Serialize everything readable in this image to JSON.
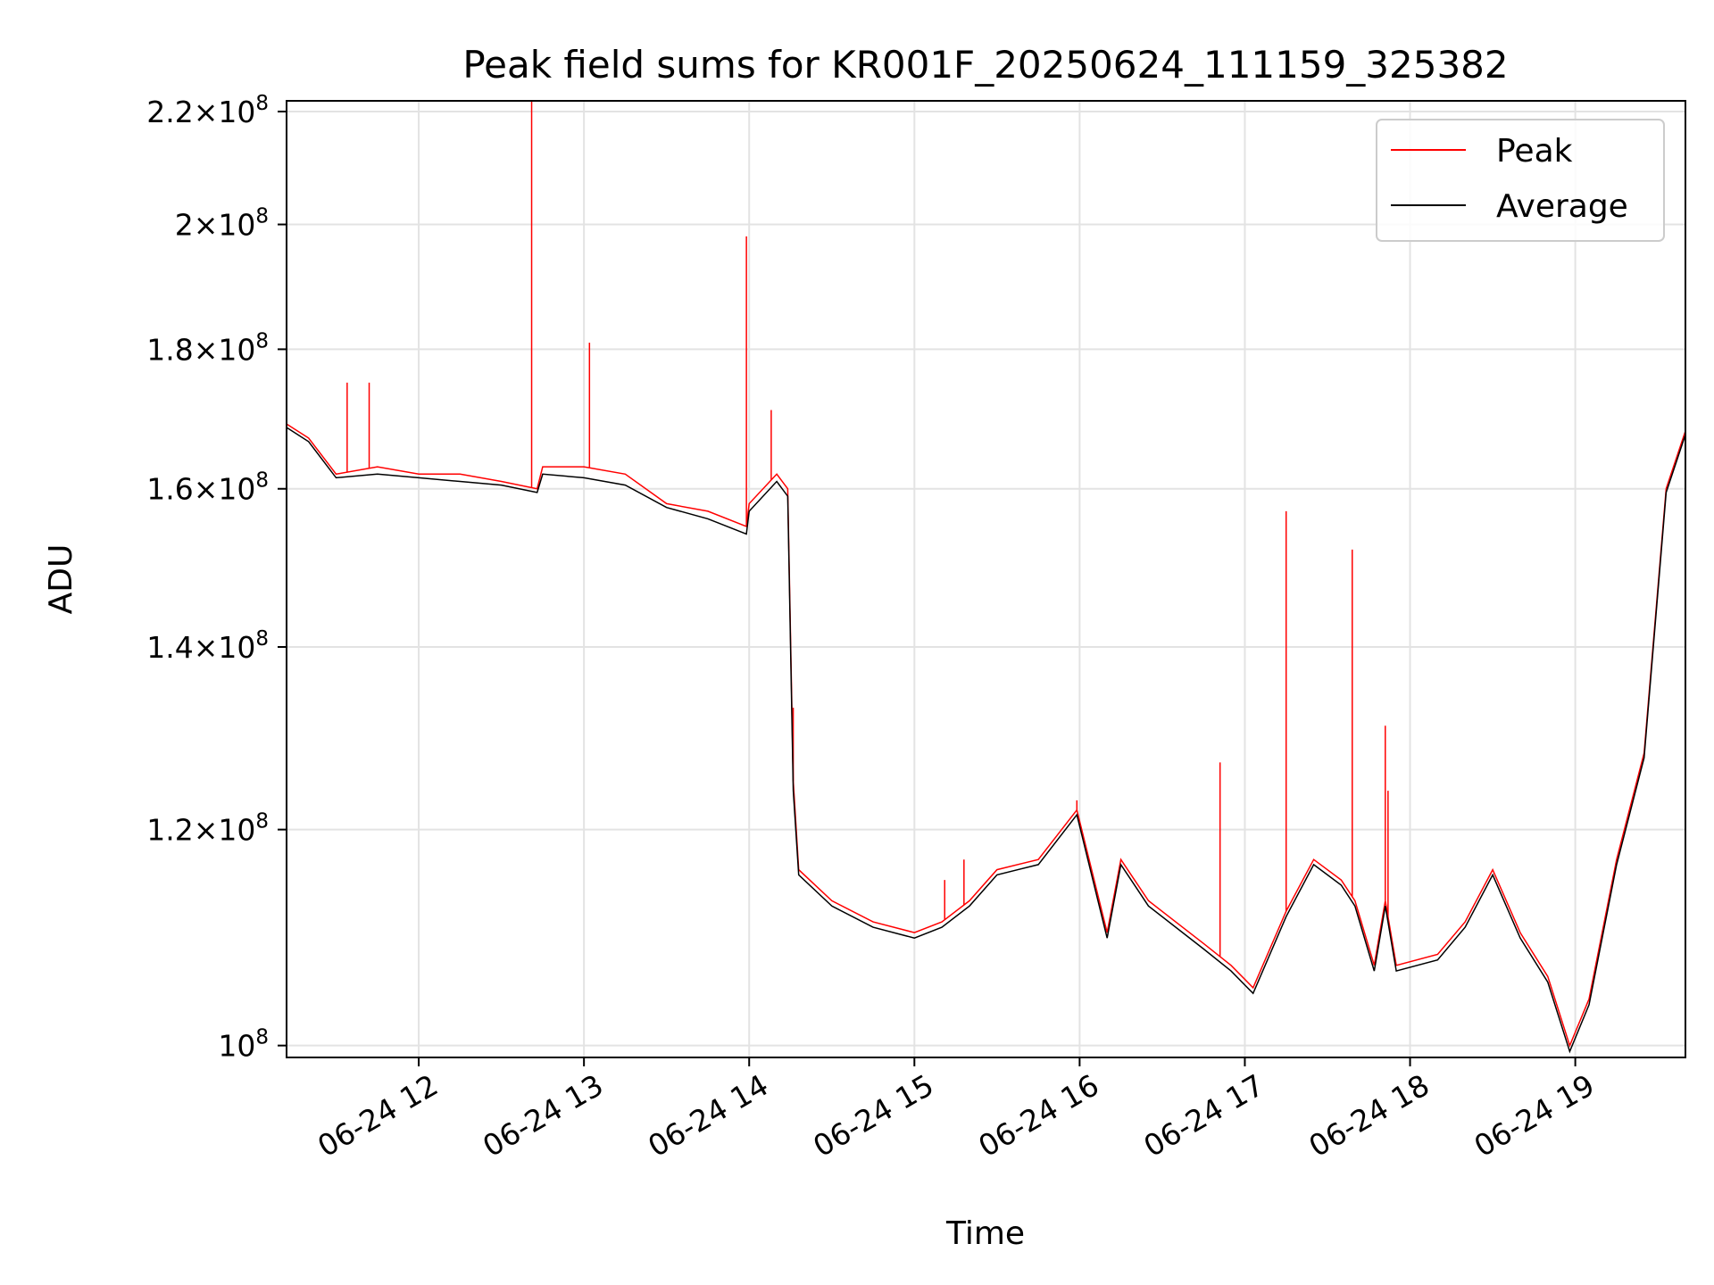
{
  "chart_data": {
    "type": "line",
    "title": "Peak field sums for KR001F_20250624_111159_325382",
    "xlabel": "Time",
    "ylabel": "ADU",
    "y_scale": "log",
    "ylim": [
      99000000,
      222000000
    ],
    "xlim": [
      "2025-06-24T11:12",
      "2025-06-24T19:40"
    ],
    "grid": true,
    "legend": "top-right",
    "x_tick_labels": [
      "06-24 12",
      "06-24 13",
      "06-24 14",
      "06-24 15",
      "06-24 16",
      "06-24 17",
      "06-24 18",
      "06-24 19"
    ],
    "x_ticks": [
      "2025-06-24T12:00",
      "2025-06-24T13:00",
      "2025-06-24T14:00",
      "2025-06-24T15:00",
      "2025-06-24T16:00",
      "2025-06-24T17:00",
      "2025-06-24T18:00",
      "2025-06-24T19:00"
    ],
    "y_ticks": [
      {
        "value": 100000000,
        "mantissa": "",
        "exp": "8"
      },
      {
        "value": 120000000,
        "mantissa": "1.2",
        "exp": "8"
      },
      {
        "value": 140000000,
        "mantissa": "1.4",
        "exp": "8"
      },
      {
        "value": 160000000,
        "mantissa": "1.6",
        "exp": "8"
      },
      {
        "value": 180000000,
        "mantissa": "1.8",
        "exp": "8"
      },
      {
        "value": 200000000,
        "mantissa": "2",
        "exp": "8"
      },
      {
        "value": 220000000,
        "mantissa": "2.2",
        "exp": "8"
      }
    ],
    "series": [
      {
        "name": "Peak",
        "color": "#ff0000",
        "x": [
          "2025-06-24T11:12",
          "2025-06-24T11:20",
          "2025-06-24T11:30",
          "2025-06-24T11:45",
          "2025-06-24T12:00",
          "2025-06-24T12:15",
          "2025-06-24T12:30",
          "2025-06-24T12:43",
          "2025-06-24T12:45",
          "2025-06-24T13:00",
          "2025-06-24T13:15",
          "2025-06-24T13:30",
          "2025-06-24T13:45",
          "2025-06-24T13:59",
          "2025-06-24T14:00",
          "2025-06-24T14:10",
          "2025-06-24T14:14",
          "2025-06-24T14:16",
          "2025-06-24T14:18",
          "2025-06-24T14:30",
          "2025-06-24T14:45",
          "2025-06-24T15:00",
          "2025-06-24T15:10",
          "2025-06-24T15:20",
          "2025-06-24T15:30",
          "2025-06-24T15:45",
          "2025-06-24T15:59",
          "2025-06-24T16:10",
          "2025-06-24T16:15",
          "2025-06-24T16:25",
          "2025-06-24T16:45",
          "2025-06-24T16:55",
          "2025-06-24T17:03",
          "2025-06-24T17:15",
          "2025-06-24T17:25",
          "2025-06-24T17:35",
          "2025-06-24T17:40",
          "2025-06-24T17:47",
          "2025-06-24T17:51",
          "2025-06-24T17:55",
          "2025-06-24T18:10",
          "2025-06-24T18:20",
          "2025-06-24T18:30",
          "2025-06-24T18:40",
          "2025-06-24T18:50",
          "2025-06-24T18:58",
          "2025-06-24T19:05",
          "2025-06-24T19:15",
          "2025-06-24T19:25",
          "2025-06-24T19:33",
          "2025-06-24T19:40"
        ],
        "y": [
          169000000,
          167000000,
          162000000,
          163000000,
          162000000,
          162000000,
          161000000,
          160000000,
          163000000,
          163000000,
          162000000,
          158000000,
          157000000,
          155000000,
          158000000,
          162000000,
          160000000,
          125000000,
          116000000,
          113000000,
          111000000,
          110000000,
          111000000,
          113000000,
          116000000,
          117000000,
          122000000,
          110000000,
          117000000,
          113000000,
          109000000,
          107000000,
          105000000,
          112000000,
          117000000,
          115000000,
          113000000,
          107000000,
          113000000,
          107000000,
          108000000,
          111000000,
          116000000,
          110000000,
          106000000,
          100000000,
          104000000,
          117000000,
          128000000,
          160000000,
          168000000
        ],
        "spikes": [
          {
            "x": "2025-06-24T11:34",
            "y": 175000000
          },
          {
            "x": "2025-06-24T11:42",
            "y": 175000000
          },
          {
            "x": "2025-06-24T12:41",
            "y": 222000000
          },
          {
            "x": "2025-06-24T13:02",
            "y": 181000000
          },
          {
            "x": "2025-06-24T13:59",
            "y": 198000000
          },
          {
            "x": "2025-06-24T14:08",
            "y": 171000000
          },
          {
            "x": "2025-06-24T14:16",
            "y": 133000000
          },
          {
            "x": "2025-06-24T15:11",
            "y": 115000000
          },
          {
            "x": "2025-06-24T15:18",
            "y": 117000000
          },
          {
            "x": "2025-06-24T15:59",
            "y": 123000000
          },
          {
            "x": "2025-06-24T16:51",
            "y": 127000000
          },
          {
            "x": "2025-06-24T17:15",
            "y": 157000000
          },
          {
            "x": "2025-06-24T17:39",
            "y": 152000000
          },
          {
            "x": "2025-06-24T17:51",
            "y": 131000000
          },
          {
            "x": "2025-06-24T17:52",
            "y": 124000000
          }
        ]
      },
      {
        "name": "Average",
        "color": "#000000",
        "x": [
          "2025-06-24T11:12",
          "2025-06-24T11:20",
          "2025-06-24T11:30",
          "2025-06-24T11:45",
          "2025-06-24T12:00",
          "2025-06-24T12:15",
          "2025-06-24T12:30",
          "2025-06-24T12:43",
          "2025-06-24T12:45",
          "2025-06-24T13:00",
          "2025-06-24T13:15",
          "2025-06-24T13:30",
          "2025-06-24T13:45",
          "2025-06-24T13:59",
          "2025-06-24T14:00",
          "2025-06-24T14:10",
          "2025-06-24T14:14",
          "2025-06-24T14:16",
          "2025-06-24T14:18",
          "2025-06-24T14:30",
          "2025-06-24T14:45",
          "2025-06-24T15:00",
          "2025-06-24T15:10",
          "2025-06-24T15:20",
          "2025-06-24T15:30",
          "2025-06-24T15:45",
          "2025-06-24T15:59",
          "2025-06-24T16:10",
          "2025-06-24T16:15",
          "2025-06-24T16:25",
          "2025-06-24T16:45",
          "2025-06-24T16:55",
          "2025-06-24T17:03",
          "2025-06-24T17:15",
          "2025-06-24T17:25",
          "2025-06-24T17:35",
          "2025-06-24T17:40",
          "2025-06-24T17:47",
          "2025-06-24T17:51",
          "2025-06-24T17:55",
          "2025-06-24T18:10",
          "2025-06-24T18:20",
          "2025-06-24T18:30",
          "2025-06-24T18:40",
          "2025-06-24T18:50",
          "2025-06-24T18:58",
          "2025-06-24T19:05",
          "2025-06-24T19:15",
          "2025-06-24T19:25",
          "2025-06-24T19:33",
          "2025-06-24T19:40"
        ],
        "y": [
          168500000,
          166500000,
          161500000,
          162000000,
          161500000,
          161000000,
          160500000,
          159500000,
          162000000,
          161500000,
          160500000,
          157500000,
          156000000,
          154000000,
          157000000,
          161000000,
          159000000,
          124000000,
          115500000,
          112500000,
          110500000,
          109500000,
          110500000,
          112500000,
          115500000,
          116500000,
          121500000,
          109500000,
          116500000,
          112500000,
          108500000,
          106500000,
          104500000,
          111500000,
          116500000,
          114500000,
          112500000,
          106500000,
          112500000,
          106500000,
          107500000,
          110500000,
          115500000,
          109500000,
          105500000,
          99500000,
          103500000,
          116500000,
          127500000,
          159500000,
          167500000
        ]
      }
    ]
  }
}
